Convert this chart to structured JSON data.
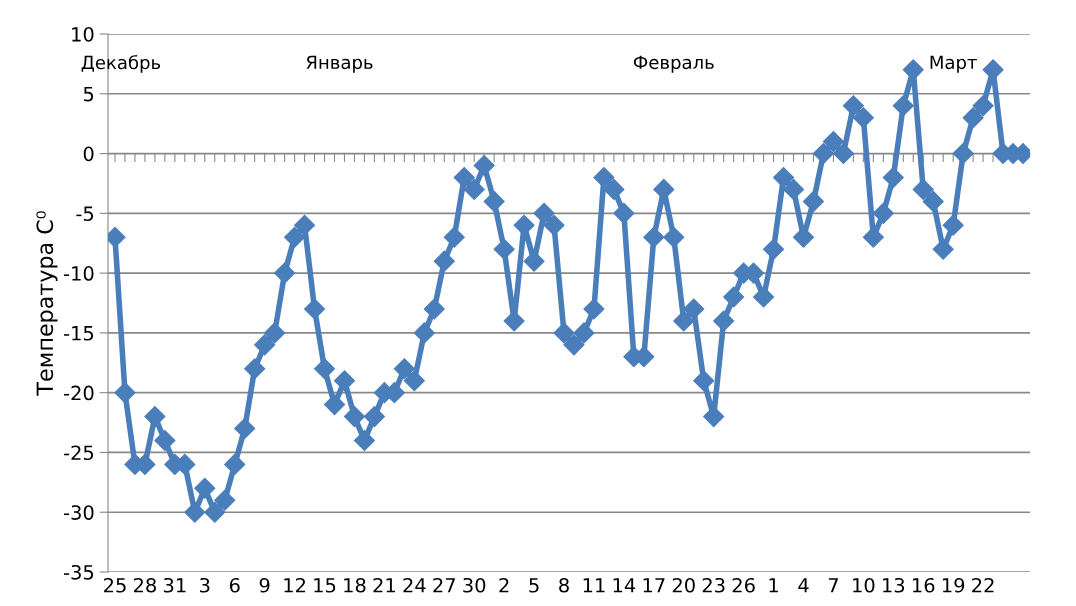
{
  "chart_data": {
    "type": "line",
    "ylabel": "Температура С⁰",
    "categories": [
      "25",
      null,
      null,
      "28",
      null,
      null,
      "31",
      null,
      null,
      "3",
      null,
      null,
      "6",
      null,
      null,
      "9",
      null,
      null,
      "12",
      null,
      null,
      "15",
      null,
      null,
      "18",
      null,
      null,
      "21",
      null,
      null,
      "24",
      null,
      null,
      "27",
      null,
      null,
      "30",
      null,
      null,
      "2",
      null,
      null,
      "5",
      null,
      null,
      "8",
      null,
      null,
      "11",
      null,
      null,
      "14",
      null,
      null,
      "17",
      null,
      null,
      "20",
      null,
      null,
      "23",
      null,
      null,
      "26",
      null,
      null,
      "1",
      null,
      null,
      "4",
      null,
      null,
      "7",
      null,
      null,
      "10",
      null,
      null,
      "13",
      null,
      null,
      "16",
      null,
      null,
      "19",
      null,
      null,
      "22",
      null,
      null,
      null,
      null
    ],
    "series": [
      {
        "color": "#4a7ebb",
        "values": [
          -7,
          -20,
          -26,
          -26,
          -22,
          -24,
          -26,
          -26,
          -30,
          -28,
          -30,
          -29,
          -26,
          -23,
          -18,
          -16,
          -15,
          -10,
          -7,
          -6,
          -13,
          -18,
          -21,
          -19,
          -22,
          -24,
          -22,
          -20,
          -20,
          -18,
          -19,
          -15,
          -13,
          -9,
          -7,
          -2,
          -3,
          -1,
          -4,
          -8,
          -14,
          -6,
          -9,
          -5,
          -6,
          -15,
          -16,
          -15,
          -13,
          -2,
          -3,
          -5,
          -17,
          -17,
          -7,
          -3,
          -7,
          -14,
          -13,
          -19,
          -22,
          -14,
          -12,
          -10,
          -10,
          -12,
          -8,
          -2,
          -3,
          -7,
          -4,
          0,
          1,
          0,
          4,
          3,
          -7,
          -5,
          -2,
          4,
          7,
          -3,
          -4,
          -8,
          -6,
          0,
          3,
          4,
          7,
          0,
          0,
          0
        ]
      }
    ],
    "annotations": [
      "Декабрь",
      "Январь",
      "Февраль",
      "Март"
    ],
    "ylim": [
      -35,
      10
    ],
    "yticks": [
      -35,
      -30,
      -25,
      -20,
      -15,
      -10,
      -5,
      0,
      5,
      10
    ],
    "grid": "y",
    "marker": "diamond",
    "line_style": "solid",
    "legend": false
  }
}
